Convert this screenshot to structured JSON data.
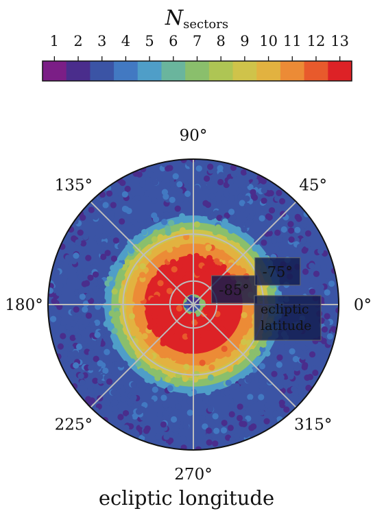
{
  "chart_data": {
    "type": "polar scatter",
    "colorbar": {
      "title_main": "N",
      "title_sub": "sectors",
      "ticks": [
        "1",
        "2",
        "3",
        "4",
        "5",
        "6",
        "7",
        "8",
        "9",
        "10",
        "11",
        "12",
        "13"
      ],
      "colors": [
        "#7b1e86",
        "#4a2d8c",
        "#3b54a5",
        "#4279c2",
        "#4f9ec8",
        "#6ab59d",
        "#8abf6c",
        "#aec554",
        "#cfc34a",
        "#e2b240",
        "#ec8b36",
        "#e85a2c",
        "#dd2226"
      ]
    },
    "angle_labels": [
      {
        "angle": 0,
        "text": "0°"
      },
      {
        "angle": 45,
        "text": "45°"
      },
      {
        "angle": 90,
        "text": "90°"
      },
      {
        "angle": 135,
        "text": "135°"
      },
      {
        "angle": 180,
        "text": "180°"
      },
      {
        "angle": 225,
        "text": "225°"
      },
      {
        "angle": 270,
        "text": "270°"
      },
      {
        "angle": 315,
        "text": "315°"
      }
    ],
    "radial_labels": [
      {
        "latitude": -85,
        "text": "-85°"
      },
      {
        "latitude": -75,
        "text": "-75°"
      }
    ],
    "radial_axis_label": "ecliptic\nlatitude",
    "xlabel": "ecliptic longitude",
    "lat_range": [
      -90,
      -59
    ],
    "sector_bands": [
      {
        "lat": [
          -90,
          -88.4
        ],
        "n": 3
      },
      {
        "lat": [
          -88.4,
          -87.8
        ],
        "n": 7
      },
      {
        "lat": [
          -87.8,
          -79.5
        ],
        "n": 13
      },
      {
        "lat": [
          -79.5,
          -77
        ],
        "n": 11
      },
      {
        "lat": [
          -77,
          -75.5
        ],
        "n": 10
      },
      {
        "lat": [
          -75.5,
          -74
        ],
        "n": 9
      },
      {
        "lat": [
          -74,
          -72.5
        ],
        "n": 7
      },
      {
        "lat": [
          -72.5,
          -71
        ],
        "n": 5
      },
      {
        "lat": [
          -71,
          -59
        ],
        "n": 3
      }
    ],
    "gridlines": true
  }
}
